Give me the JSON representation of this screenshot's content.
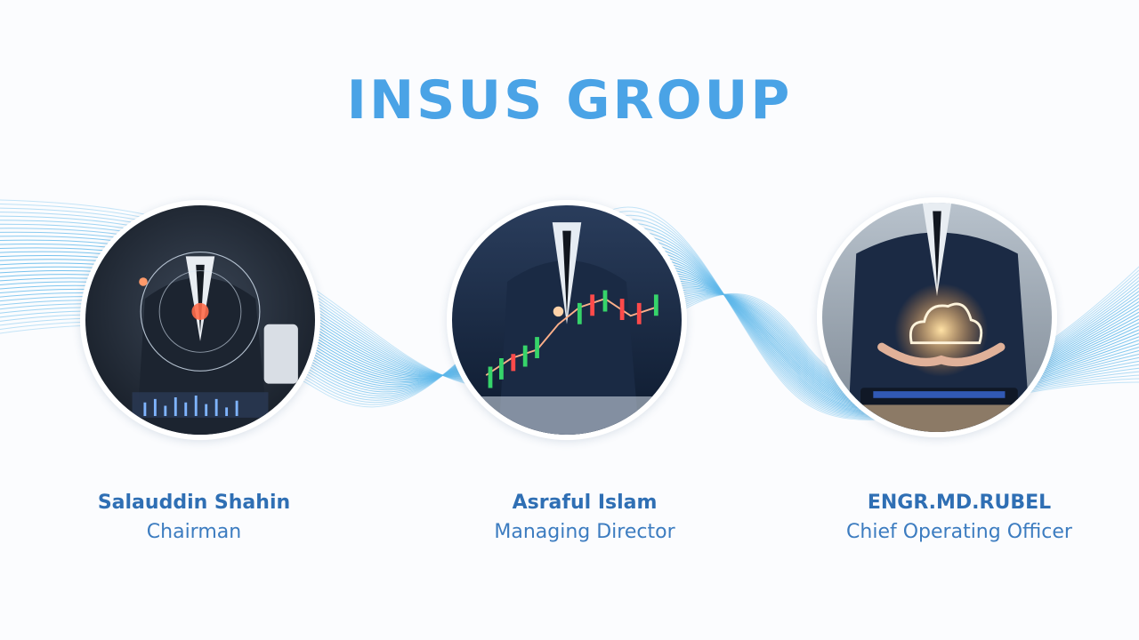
{
  "header": {
    "title": "INSUS GROUP"
  },
  "team": [
    {
      "name": "Salauddin Shahin",
      "role": "Chairman"
    },
    {
      "name": "Asraful Islam",
      "role": "Managing Director"
    },
    {
      "name": "ENGR.MD.RUBEL",
      "role": "Chief Operating Officer"
    }
  ],
  "colors": {
    "accent": "#4aa3e6",
    "name_text": "#2f6fb4",
    "wave": "#5fb8ea"
  }
}
